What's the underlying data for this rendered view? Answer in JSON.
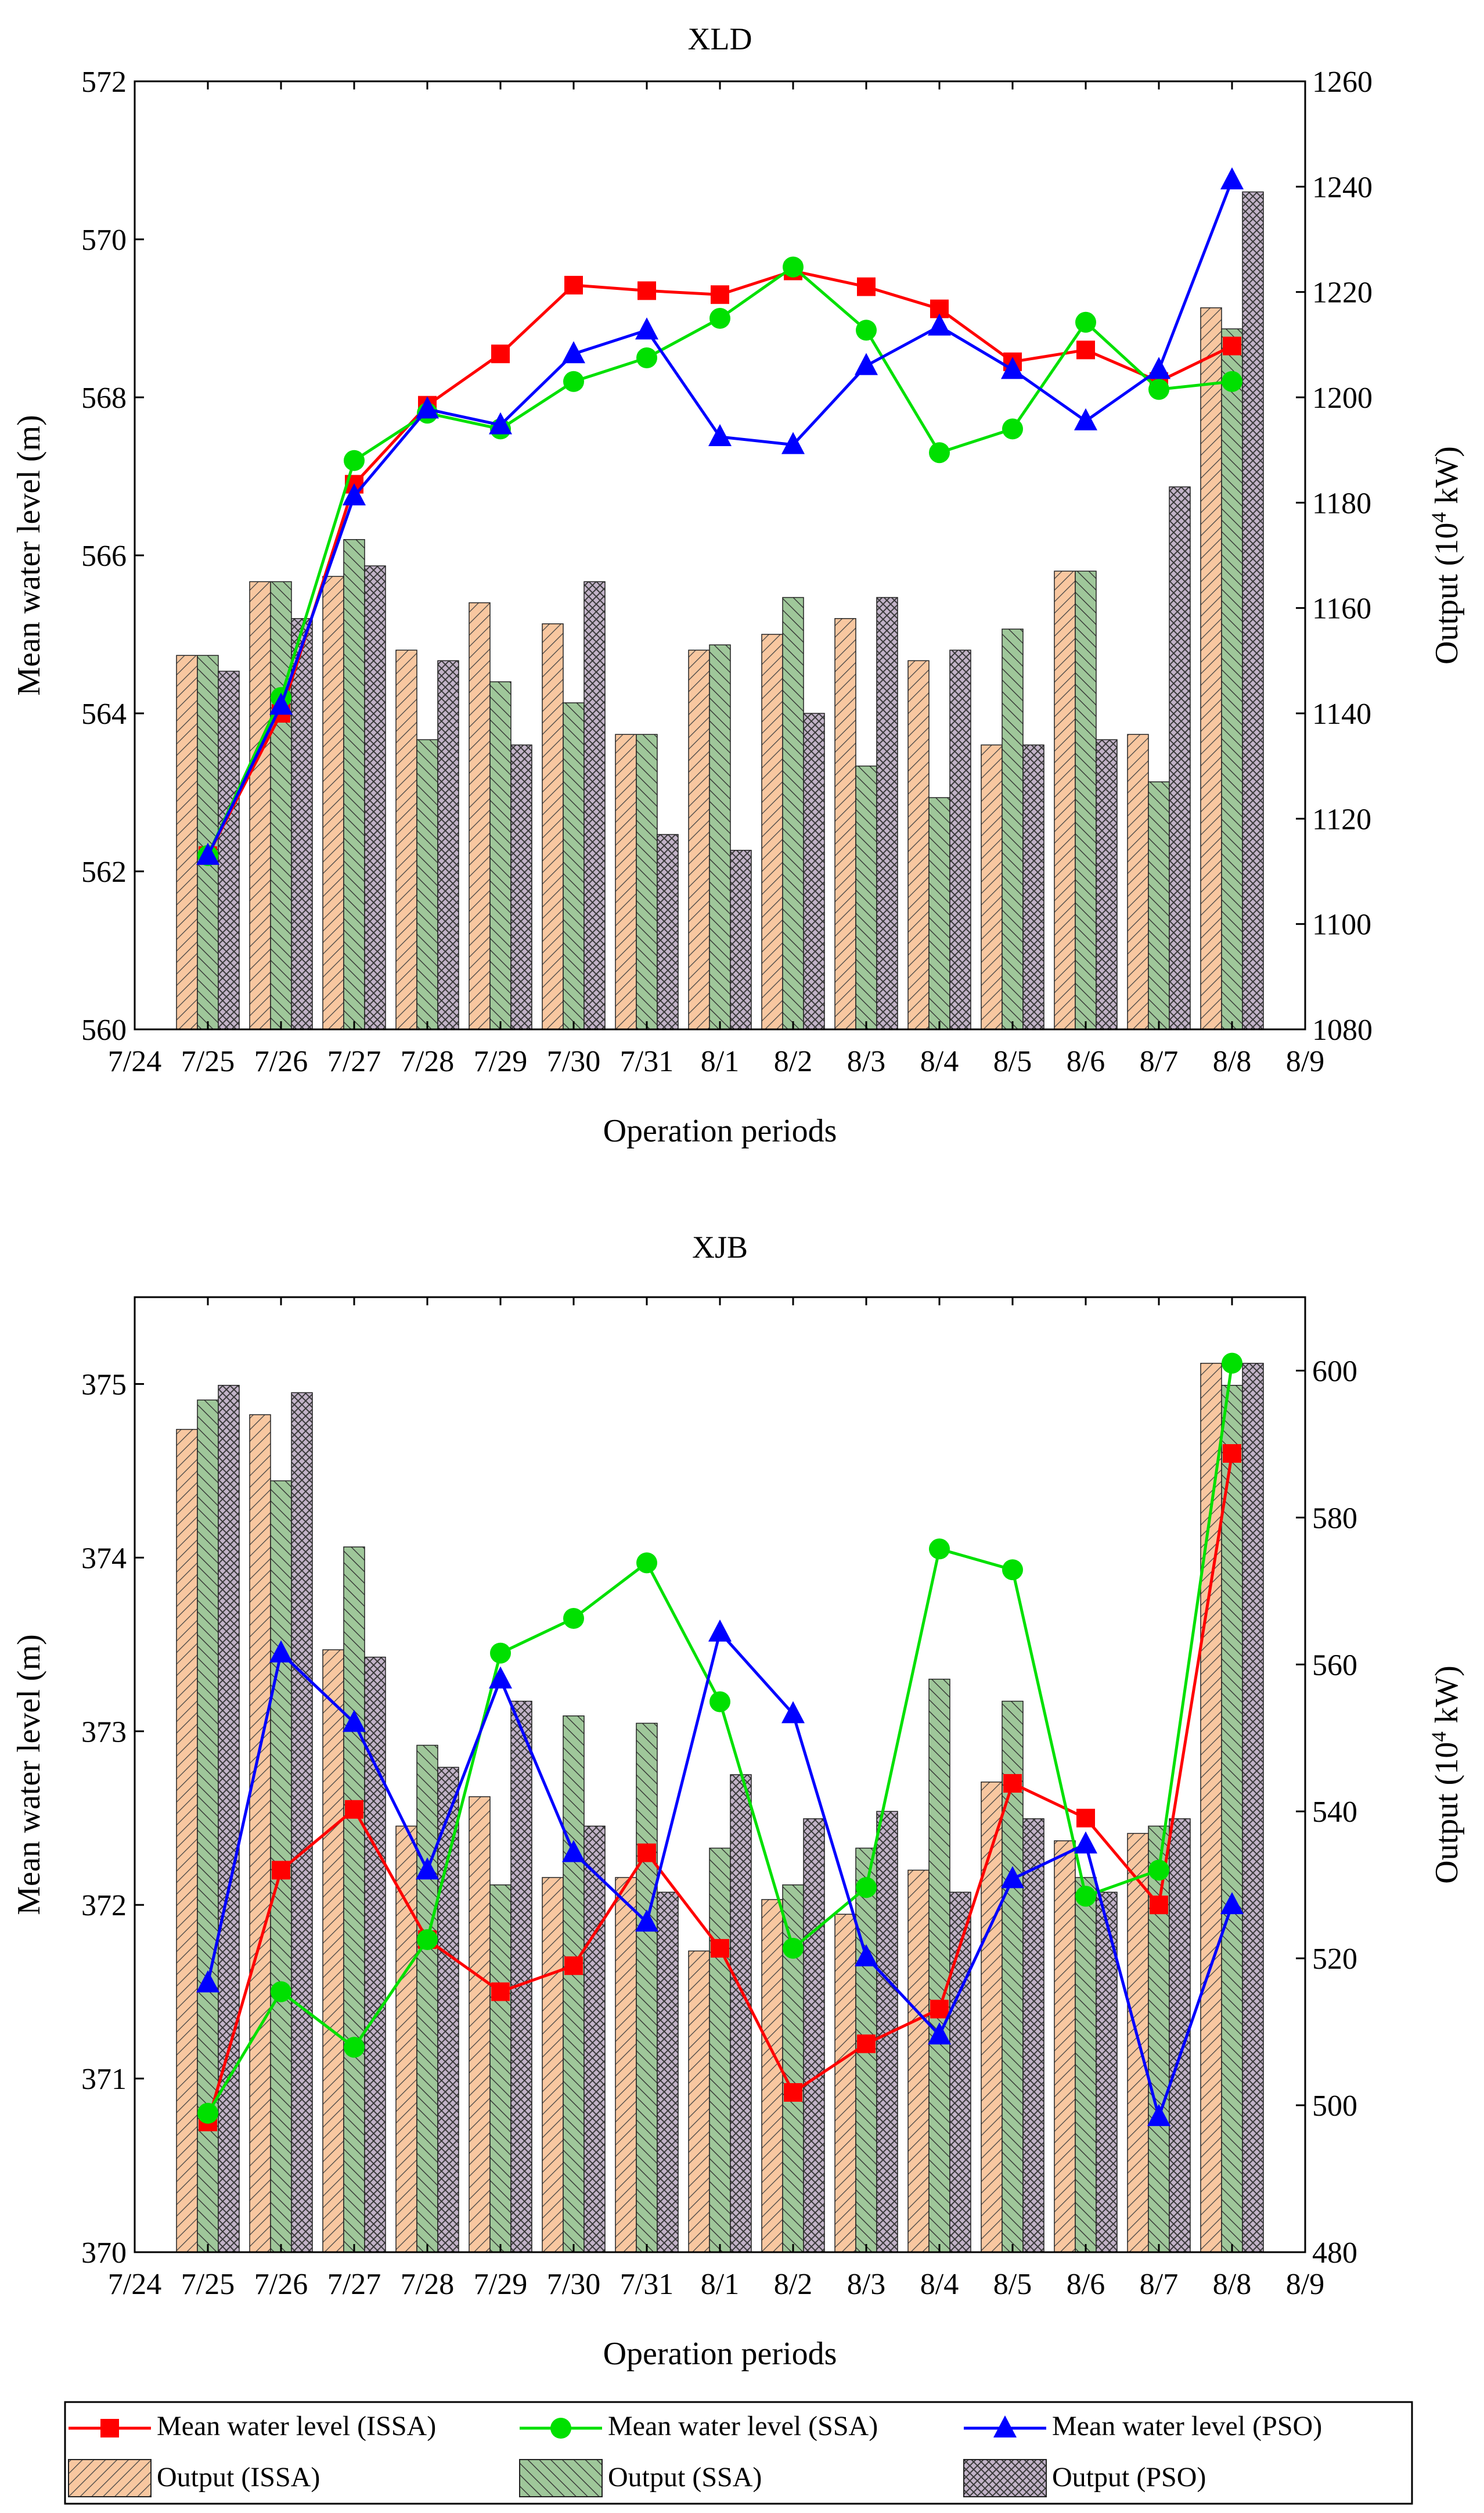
{
  "chart_data": [
    {
      "type": "bar+line",
      "title": "XLD",
      "xlabel": "Operation periods",
      "ylabel_left": "Mean water level (m)",
      "ylabel_right_prefix": "Output (10",
      "ylabel_right_sup": "4",
      "ylabel_right_suffix": " kW)",
      "x_ticks": [
        "7/24",
        "7/25",
        "7/26",
        "7/27",
        "7/28",
        "7/29",
        "7/30",
        "7/31",
        "8/1",
        "8/2",
        "8/3",
        "8/4",
        "8/5",
        "8/6",
        "8/7",
        "8/8",
        "8/9"
      ],
      "categories": [
        "7/25",
        "7/26",
        "7/27",
        "7/28",
        "7/29",
        "7/30",
        "7/31",
        "8/1",
        "8/2",
        "8/3",
        "8/4",
        "8/5",
        "8/6",
        "8/7",
        "8/8"
      ],
      "ylim_left": [
        560,
        572
      ],
      "yticks_left": [
        560,
        562,
        564,
        566,
        568,
        570,
        572
      ],
      "ylim_right": [
        1080,
        1260
      ],
      "yticks_right": [
        1080,
        1100,
        1120,
        1140,
        1160,
        1180,
        1200,
        1220,
        1240,
        1260
      ],
      "lines": [
        {
          "name": "Mean water level (ISSA)",
          "color": "#ff0000",
          "marker": "square",
          "values": [
            562.2,
            564.0,
            566.9,
            567.9,
            568.55,
            569.42,
            569.35,
            569.3,
            569.6,
            569.4,
            569.12,
            568.45,
            568.6,
            568.2,
            568.65
          ]
        },
        {
          "name": "Mean water level (SSA)",
          "color": "#00e000",
          "marker": "circle",
          "values": [
            562.2,
            564.2,
            567.2,
            567.8,
            567.6,
            568.2,
            568.5,
            569.0,
            569.65,
            568.85,
            567.3,
            567.6,
            568.95,
            568.1,
            568.2
          ]
        },
        {
          "name": "Mean water level (PSO)",
          "color": "#0000ff",
          "marker": "triangle",
          "values": [
            562.2,
            564.1,
            566.75,
            567.85,
            567.65,
            568.55,
            568.85,
            567.5,
            567.4,
            568.4,
            568.9,
            568.35,
            567.7,
            568.35,
            570.75
          ]
        }
      ],
      "bars": [
        {
          "name": "Output (ISSA)",
          "values": [
            1151,
            1165,
            1166,
            1152,
            1161,
            1157,
            1136,
            1152,
            1155,
            1158,
            1150,
            1134,
            1167,
            1136,
            1217
          ]
        },
        {
          "name": "Output (SSA)",
          "values": [
            1151,
            1165,
            1173,
            1135,
            1146,
            1142,
            1136,
            1153,
            1162,
            1130,
            1124,
            1156,
            1167,
            1127,
            1213
          ]
        },
        {
          "name": "Output (PSO)",
          "values": [
            1148,
            1158,
            1168,
            1150,
            1134,
            1165,
            1117,
            1114,
            1140,
            1162,
            1152,
            1134,
            1135,
            1183,
            1239
          ]
        }
      ]
    },
    {
      "type": "bar+line",
      "title": "XJB",
      "xlabel": "Operation periods",
      "ylabel_left": "Mean water level (m)",
      "ylabel_right_prefix": "Output (10",
      "ylabel_right_sup": "4",
      "ylabel_right_suffix": " kW)",
      "x_ticks": [
        "7/24",
        "7/25",
        "7/26",
        "7/27",
        "7/28",
        "7/29",
        "7/30",
        "7/31",
        "8/1",
        "8/2",
        "8/3",
        "8/4",
        "8/5",
        "8/6",
        "8/7",
        "8/8",
        "8/9"
      ],
      "categories": [
        "7/25",
        "7/26",
        "7/27",
        "7/28",
        "7/29",
        "7/30",
        "7/31",
        "8/1",
        "8/2",
        "8/3",
        "8/4",
        "8/5",
        "8/6",
        "8/7",
        "8/8"
      ],
      "ylim_left": [
        370,
        375.5
      ],
      "yticks_left": [
        370,
        371,
        372,
        373,
        374,
        375
      ],
      "ylim_right": [
        480,
        610
      ],
      "yticks_right": [
        480,
        500,
        520,
        540,
        560,
        580,
        600
      ],
      "lines": [
        {
          "name": "Mean water level (ISSA)",
          "color": "#ff0000",
          "marker": "square",
          "values": [
            370.75,
            372.2,
            372.55,
            371.8,
            371.5,
            371.65,
            372.3,
            371.75,
            370.92,
            371.2,
            371.4,
            372.7,
            372.5,
            372.0,
            374.6
          ]
        },
        {
          "name": "Mean water level (SSA)",
          "color": "#00e000",
          "marker": "circle",
          "values": [
            370.8,
            371.5,
            371.18,
            371.8,
            373.45,
            373.65,
            373.97,
            373.17,
            371.75,
            372.1,
            374.05,
            373.93,
            372.05,
            372.2,
            375.12
          ]
        },
        {
          "name": "Mean water level (PSO)",
          "color": "#0000ff",
          "marker": "triangle",
          "values": [
            371.55,
            373.45,
            373.05,
            372.2,
            373.3,
            372.3,
            371.9,
            373.57,
            373.1,
            371.7,
            371.25,
            372.15,
            372.35,
            370.78,
            372.0
          ]
        }
      ],
      "bars": [
        {
          "name": "Output (ISSA)",
          "values": [
            592,
            594,
            562,
            538,
            542,
            531,
            531,
            521,
            528,
            526,
            532,
            544,
            536,
            537,
            601
          ]
        },
        {
          "name": "Output (SSA)",
          "values": [
            596,
            585,
            576,
            549,
            530,
            553,
            552,
            535,
            530,
            535,
            558,
            555,
            531,
            538,
            598
          ]
        },
        {
          "name": "Output (PSO)",
          "values": [
            598,
            597,
            561,
            546,
            555,
            538,
            529,
            545,
            539,
            540,
            529,
            539,
            529,
            539,
            601
          ]
        }
      ]
    }
  ],
  "legend": {
    "items": [
      {
        "label": "Mean water level (ISSA)",
        "kind": "line",
        "color": "#ff0000",
        "marker": "square"
      },
      {
        "label": "Mean water level (SSA)",
        "kind": "line",
        "color": "#00e000",
        "marker": "circle"
      },
      {
        "label": "Mean water level (PSO)",
        "kind": "line",
        "color": "#0000ff",
        "marker": "triangle"
      },
      {
        "label": "Output (ISSA)",
        "kind": "bar",
        "pattern": "issa"
      },
      {
        "label": "Output (SSA)",
        "kind": "bar",
        "pattern": "ssa"
      },
      {
        "label": "Output (PSO)",
        "kind": "bar",
        "pattern": "pso"
      }
    ]
  }
}
